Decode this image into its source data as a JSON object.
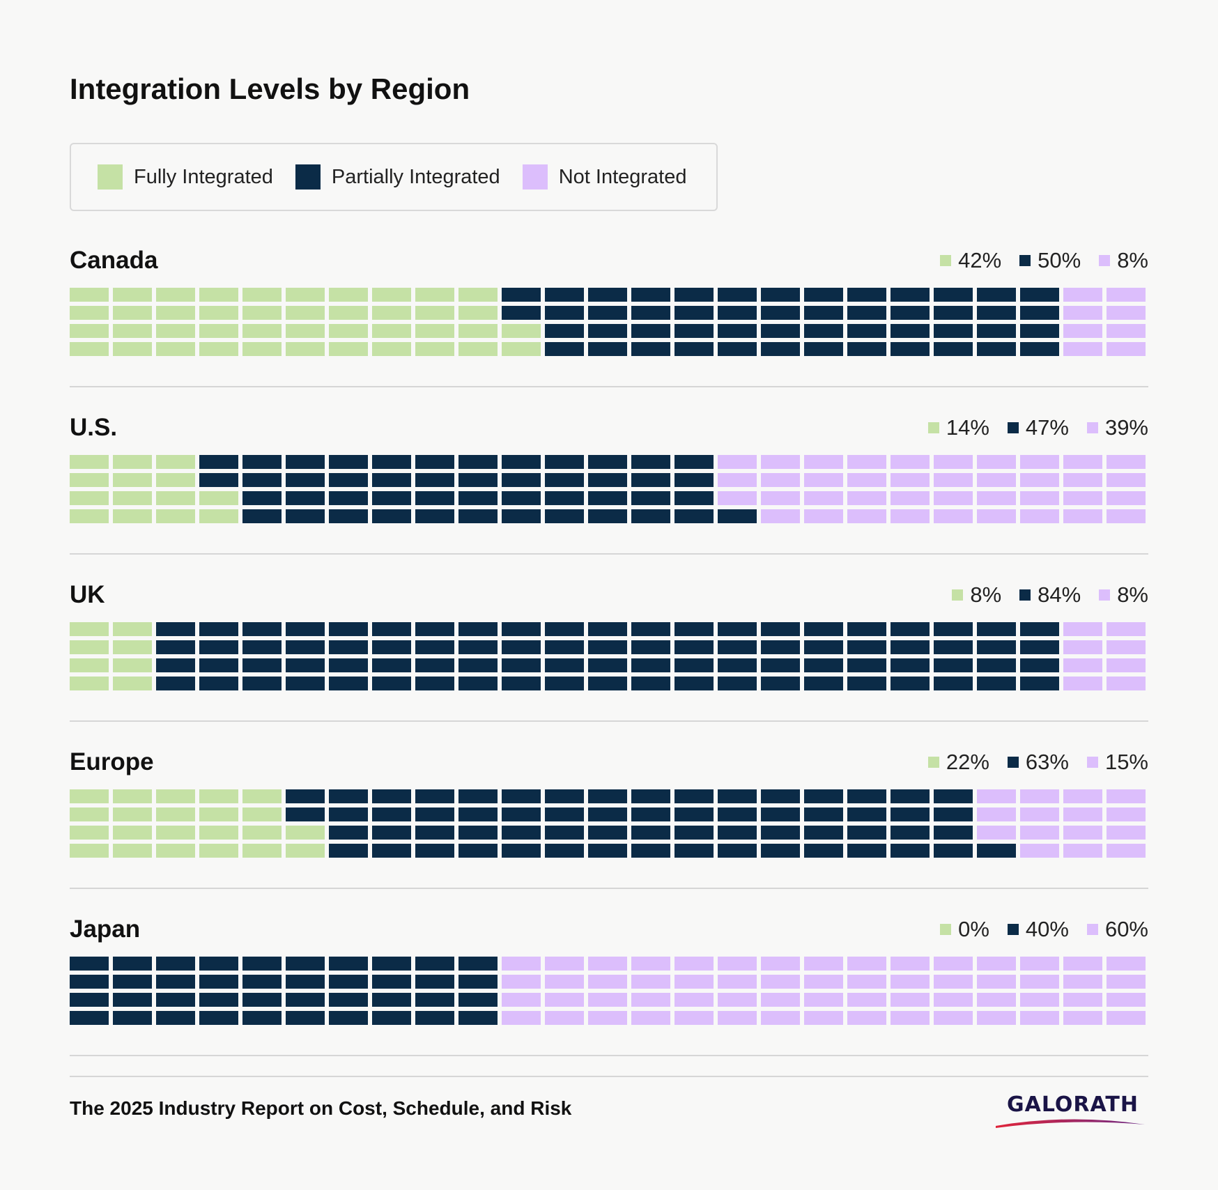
{
  "title": "Integration Levels by Region",
  "colors": {
    "fully": "#c5e1a5",
    "partially": "#0b2b47",
    "not": "#dcbefc"
  },
  "legend": [
    {
      "key": "fully",
      "label": "Fully Integrated"
    },
    {
      "key": "partially",
      "label": "Partially Integrated"
    },
    {
      "key": "not",
      "label": "Not Integrated"
    }
  ],
  "chart_data": {
    "type": "waffle",
    "title": "Integration Levels by Region",
    "series": [
      "Fully Integrated",
      "Partially Integrated",
      "Not Integrated"
    ],
    "grid": {
      "columns": 25,
      "rows": 4
    },
    "regions": [
      {
        "name": "Canada",
        "fully": 42,
        "partially": 50,
        "not": 8,
        "labels": [
          "42%",
          "50%",
          "8%"
        ]
      },
      {
        "name": "U.S.",
        "fully": 14,
        "partially": 47,
        "not": 39,
        "labels": [
          "14%",
          "47%",
          "39%"
        ]
      },
      {
        "name": "UK",
        "fully": 8,
        "partially": 84,
        "not": 8,
        "labels": [
          "8%",
          "84%",
          "8%"
        ]
      },
      {
        "name": "Europe",
        "fully": 22,
        "partially": 63,
        "not": 15,
        "labels": [
          "22%",
          "63%",
          "15%"
        ]
      },
      {
        "name": "Japan",
        "fully": 0,
        "partially": 40,
        "not": 60,
        "labels": [
          "0%",
          "40%",
          "60%"
        ]
      }
    ]
  },
  "footer": {
    "report": "The 2025 Industry Report on Cost, Schedule, and Risk",
    "logo": "GALORATH"
  }
}
